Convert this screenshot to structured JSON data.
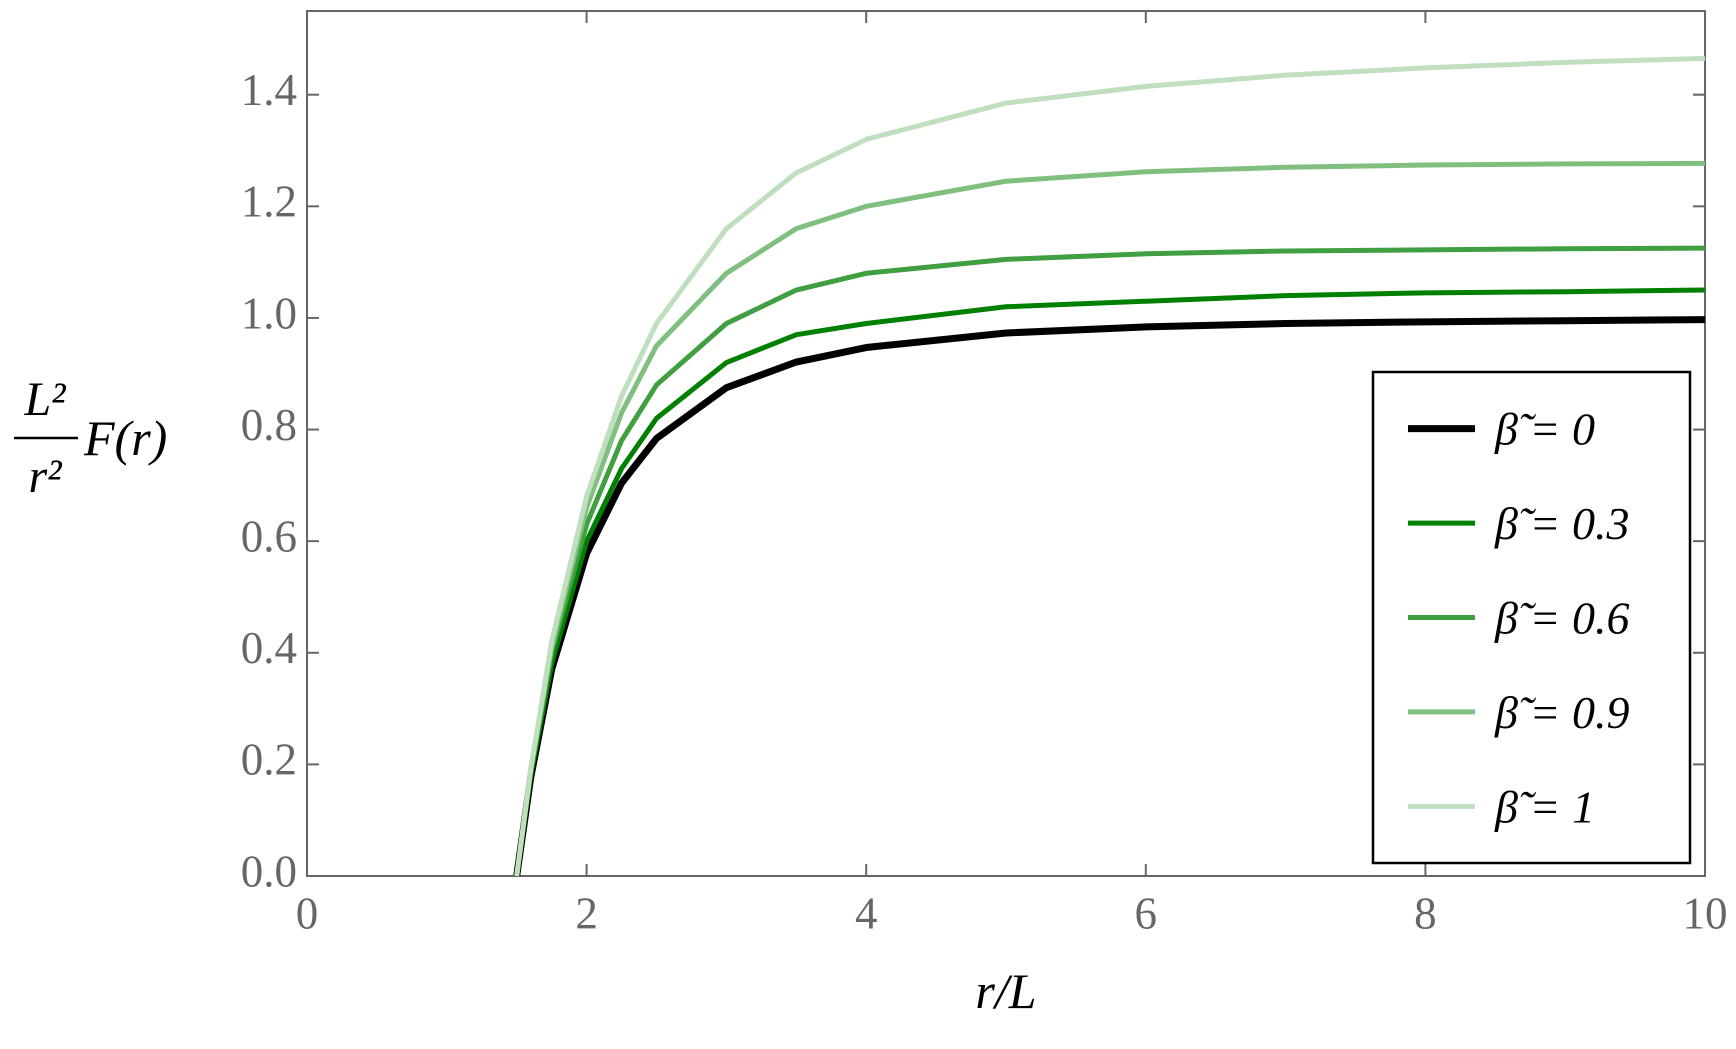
{
  "chart_data": {
    "type": "line",
    "x_label": "r/L",
    "y_label": {
      "numerator": "L²",
      "denominator": "r²",
      "factor": "F(r)"
    },
    "x": [
      1.5,
      1.6,
      1.75,
      2,
      2.25,
      2.5,
      3,
      3.5,
      4,
      5,
      6,
      7,
      8,
      9,
      10
    ],
    "series": [
      {
        "name": "β̃ = 0",
        "color": "#000000",
        "values": [
          0,
          0.176,
          0.37,
          0.578,
          0.704,
          0.784,
          0.875,
          0.921,
          0.947,
          0.973,
          0.984,
          0.99,
          0.993,
          0.995,
          0.997
        ]
      },
      {
        "name": "β̃ = 0.3",
        "color": "#008000",
        "values": [
          0,
          0.18,
          0.38,
          0.6,
          0.73,
          0.82,
          0.92,
          0.97,
          0.99,
          1.02,
          1.03,
          1.04,
          1.045,
          1.047,
          1.05
        ]
      },
      {
        "name": "β̃ = 0.6",
        "color": "#409f40",
        "values": [
          0,
          0.19,
          0.4,
          0.63,
          0.78,
          0.88,
          0.99,
          1.05,
          1.08,
          1.105,
          1.115,
          1.12,
          1.122,
          1.124,
          1.125
        ]
      },
      {
        "name": "β̃ = 0.9",
        "color": "#80bf80",
        "values": [
          0,
          0.19,
          0.41,
          0.66,
          0.83,
          0.95,
          1.08,
          1.16,
          1.2,
          1.245,
          1.262,
          1.27,
          1.274,
          1.276,
          1.277
        ]
      },
      {
        "name": "β̃ = 1",
        "color": "#bfdfbf",
        "values": [
          0,
          0.19,
          0.42,
          0.68,
          0.86,
          0.99,
          1.16,
          1.26,
          1.32,
          1.385,
          1.415,
          1.435,
          1.448,
          1.458,
          1.465
        ]
      }
    ],
    "xlim": [
      0,
      10
    ],
    "xticks": [
      0,
      2,
      4,
      6,
      8,
      10
    ],
    "ylim": [
      0,
      1.55
    ],
    "yticks": [
      {
        "value": 0,
        "label": "0.0"
      },
      {
        "value": 0.2,
        "label": "0.2"
      },
      {
        "value": 0.4,
        "label": "0.4"
      },
      {
        "value": 0.6,
        "label": "0.6"
      },
      {
        "value": 0.8,
        "label": "0.8"
      },
      {
        "value": 1,
        "label": "1.0"
      },
      {
        "value": 1.2,
        "label": "1.2"
      },
      {
        "value": 1.4,
        "label": "1.4"
      }
    ],
    "legend": "lower right"
  }
}
